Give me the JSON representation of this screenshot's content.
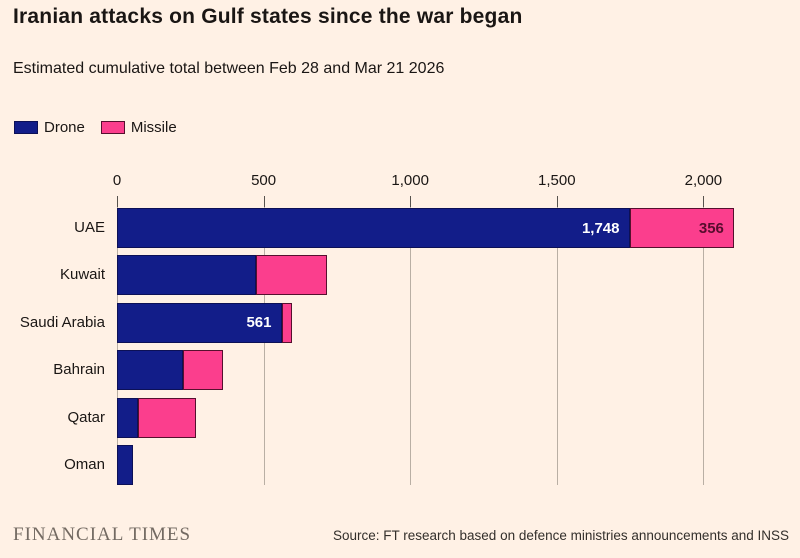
{
  "header": {
    "title": "Iranian attacks on Gulf states since the war began",
    "subtitle": "Estimated cumulative total between Feb 28 and Mar 21 2026"
  },
  "legend": {
    "items": [
      {
        "label": "Drone",
        "color": "#121d89"
      },
      {
        "label": "Missile",
        "color": "#fb3e8d"
      }
    ]
  },
  "colors": {
    "background": "#fff1e5",
    "drone": "#121d89",
    "missile": "#fb3e8d",
    "gridline": "#b9afa4",
    "tick": "#57534e",
    "text": "#1a1614",
    "value_on_drone": "#ffffff",
    "value_on_missile": "#570c2d",
    "ft_brand": "#736a62"
  },
  "chart_data": {
    "type": "bar",
    "orientation": "horizontal",
    "stacked": true,
    "title": "Iranian attacks on Gulf states since the war began",
    "subtitle": "Estimated cumulative total between Feb 28 and Mar 21 2026",
    "legend_position": "top-left",
    "grid": "vertical",
    "categories": [
      "UAE",
      "Kuwait",
      "Saudi Arabia",
      "Bahrain",
      "Qatar",
      "Oman"
    ],
    "series": [
      {
        "name": "Drone",
        "color": "#121d89",
        "values": [
          1748,
          475,
          561,
          225,
          70,
          55
        ]
      },
      {
        "name": "Missile",
        "color": "#fb3e8d",
        "values": [
          356,
          240,
          35,
          135,
          200,
          0
        ]
      }
    ],
    "bar_labels": [
      {
        "category": "UAE",
        "series": "Drone",
        "text": "1,748"
      },
      {
        "category": "UAE",
        "series": "Missile",
        "text": "356"
      },
      {
        "category": "Saudi Arabia",
        "series": "Drone",
        "text": "561"
      }
    ],
    "x_ticks": [
      0,
      500,
      1000,
      1500,
      2000
    ],
    "x_tick_labels": [
      "0",
      "500",
      "1,000",
      "1,500",
      "2,000"
    ],
    "xlim": [
      0,
      2200
    ]
  },
  "footer": {
    "brand": "FINANCIAL TIMES",
    "source": "Source: FT research based on defence ministries announcements and INSS"
  }
}
